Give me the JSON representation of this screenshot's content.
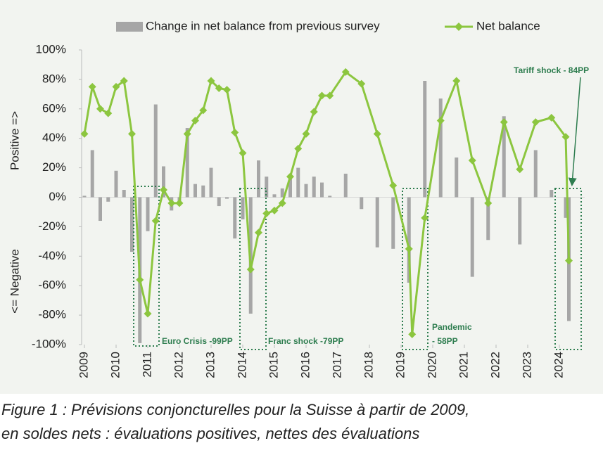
{
  "chart_data": {
    "type": "bar-line",
    "y_label_top": "Positive =>",
    "y_label_bottom": "<= Negative",
    "x": [
      2009.0,
      2009.25,
      2009.5,
      2009.75,
      2010.0,
      2010.25,
      2010.5,
      2010.75,
      2011.0,
      2011.25,
      2011.5,
      2011.75,
      2012.0,
      2012.25,
      2012.5,
      2012.75,
      2013.0,
      2013.25,
      2013.5,
      2013.75,
      2014.0,
      2014.25,
      2014.5,
      2014.75,
      2015.0,
      2015.25,
      2015.5,
      2015.75,
      2016.0,
      2016.25,
      2016.5,
      2016.75,
      2017.25,
      2017.75,
      2018.25,
      2018.75,
      2019.25,
      2019.35,
      2019.75,
      2020.25,
      2020.75,
      2021.25,
      2021.75,
      2022.25,
      2022.75,
      2023.25,
      2023.75,
      2024.2,
      2024.3
    ],
    "series": [
      {
        "name": "Change in net balance from previous survey",
        "color": "#a6a6a6",
        "values": [
          1,
          32,
          -16,
          -3,
          18,
          5,
          -37,
          -99,
          -23,
          63,
          21,
          -9,
          -3,
          47,
          9,
          8,
          20,
          -6,
          -1,
          -28,
          -15,
          -79,
          25,
          14,
          2,
          6,
          13,
          20,
          9,
          14,
          10,
          1,
          16,
          -8,
          -34,
          -35,
          -58,
          null,
          79,
          67,
          27,
          -54,
          -29,
          55,
          -32,
          32,
          5,
          -14,
          -84
        ]
      },
      {
        "name": "Net balance",
        "color": "#8cc63f",
        "values": [
          43,
          75,
          60,
          57,
          75,
          79,
          43,
          -56,
          -79,
          -16,
          5,
          -4,
          -4,
          43,
          52,
          59,
          79,
          74,
          73,
          44,
          30,
          -49,
          -24,
          -11,
          -9,
          -4,
          14,
          33,
          43,
          58,
          69,
          69,
          85,
          77,
          43,
          8,
          -35,
          -93,
          -14,
          52,
          79,
          25,
          -4,
          51,
          19,
          51,
          54,
          41,
          -43
        ]
      }
    ],
    "xlim": [
      2008.9,
      2024.8
    ],
    "xticks": [
      2009,
      2010,
      2011,
      2012,
      2013,
      2014,
      2015,
      2016,
      2017,
      2018,
      2019,
      2020,
      2021,
      2022,
      2023,
      2024
    ],
    "ylim": [
      -100,
      100
    ],
    "yticks": [
      {
        "value": -100,
        "label": "-100%"
      },
      {
        "value": -80,
        "label": "-80%"
      },
      {
        "value": -60,
        "label": "-60%"
      },
      {
        "value": -40,
        "label": "-40%"
      },
      {
        "value": -20,
        "label": "-20%"
      },
      {
        "value": 0,
        "label": "0%"
      },
      {
        "value": 20,
        "label": "20%"
      },
      {
        "value": 40,
        "label": "40%"
      },
      {
        "value": 60,
        "label": "60%"
      },
      {
        "value": 80,
        "label": "80%"
      },
      {
        "value": 100,
        "label": "100%"
      }
    ],
    "annotations": [
      "Euro Crisis -99PP",
      "Franc shock -79PP",
      [
        "Pandemic",
        "- 58PP"
      ],
      "Tariff shock - 84PP"
    ]
  },
  "caption": [
    "Figure 1 : Prévisions conjoncturelles pour la Suisse à partir de 2009,",
    "en soldes nets : évaluations positives, nettes des évaluations"
  ]
}
